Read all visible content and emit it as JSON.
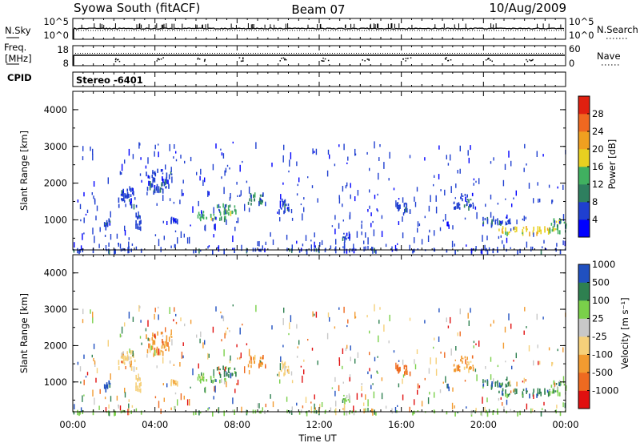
{
  "header": {
    "station": "Syowa South (fitACF)",
    "beam": "Beam 07",
    "date": "10/Aug/2009"
  },
  "noise_panel": {
    "left_label": "N.Sky",
    "right_label": "N.Search",
    "left_ticks": [
      "10^5",
      "10^0"
    ],
    "right_ticks": [
      "10^5",
      "10^0"
    ]
  },
  "freq_panel": {
    "left_label_line1": "Freq.",
    "left_label_line2": "[MHz]",
    "left_ticks": [
      "18",
      "8"
    ],
    "right_label": "Nave",
    "right_ticks": [
      "60",
      "0"
    ]
  },
  "cpid": {
    "label": "CPID",
    "value": "Stereo -6401"
  },
  "colors": {
    "power_scale": [
      "#0000ff",
      "#1f3fd0",
      "#2e7f5f",
      "#40b060",
      "#e8d020",
      "#f0a020",
      "#ef6820",
      "#e02010"
    ],
    "velocity_scale": [
      "#e01010",
      "#ee6a20",
      "#f29b30",
      "#f6d07a",
      "#c8c8c8",
      "#7ad04a",
      "#2e8050",
      "#2050c0"
    ]
  },
  "chart_data": [
    {
      "type": "heatmap",
      "name": "power",
      "ylabel": "Slant Range [km]",
      "ylim": [
        180,
        4500
      ],
      "yticks": [
        "1000",
        "2000",
        "3000",
        "4000"
      ],
      "xlim": [
        0,
        24
      ],
      "colorbar_label": "Power [dB]",
      "colorbar_ticks": [
        "4",
        "8",
        "12",
        "16",
        "20",
        "24",
        "28"
      ],
      "echo_regions": [
        {
          "t": [
            0.0,
            24.0
          ],
          "r": [
            180,
            240
          ],
          "level": 1
        },
        {
          "t": [
            1.5,
            1.8
          ],
          "r": [
            850,
            1050
          ],
          "level": 1
        },
        {
          "t": [
            2.2,
            3.1
          ],
          "r": [
            1400,
            1900
          ],
          "level": 1
        },
        {
          "t": [
            3.0,
            3.3
          ],
          "r": [
            800,
            1200
          ],
          "level": 1
        },
        {
          "t": [
            3.5,
            4.8
          ],
          "r": [
            1800,
            2400
          ],
          "level": 1
        },
        {
          "t": [
            4.7,
            5.1
          ],
          "r": [
            950,
            1100
          ],
          "level": 1
        },
        {
          "t": [
            6.0,
            7.5
          ],
          "r": [
            1050,
            1250
          ],
          "level": 3
        },
        {
          "t": [
            7.0,
            8.0
          ],
          "r": [
            1200,
            1450
          ],
          "level": 3
        },
        {
          "t": [
            8.5,
            9.3
          ],
          "r": [
            1450,
            1750
          ],
          "level": 2
        },
        {
          "t": [
            10.0,
            10.5
          ],
          "r": [
            1250,
            1600
          ],
          "level": 1
        },
        {
          "t": [
            13.0,
            13.5
          ],
          "r": [
            500,
            650
          ],
          "level": 1
        },
        {
          "t": [
            15.7,
            16.4
          ],
          "r": [
            1250,
            1500
          ],
          "level": 1
        },
        {
          "t": [
            18.5,
            19.5
          ],
          "r": [
            1350,
            1750
          ],
          "level": 1
        },
        {
          "t": [
            19.8,
            21.3
          ],
          "r": [
            900,
            1100
          ],
          "level": 1
        },
        {
          "t": [
            20.6,
            23.2
          ],
          "r": [
            650,
            850
          ],
          "level": 4
        },
        {
          "t": [
            23.2,
            24.0
          ],
          "r": [
            700,
            1050
          ],
          "level": 3
        }
      ]
    },
    {
      "type": "heatmap",
      "name": "velocity",
      "ylabel": "Slant Range [km]",
      "xlabel": "Time UT",
      "ylim": [
        180,
        4500
      ],
      "yticks": [
        "1000",
        "2000",
        "3000",
        "4000"
      ],
      "xlim": [
        0,
        24
      ],
      "xticks": [
        "00:00",
        "04:00",
        "08:00",
        "12:00",
        "16:00",
        "20:00",
        "00:00"
      ],
      "colorbar_label": "Velocity [m s⁻¹]",
      "colorbar_ticks": [
        "-1000",
        "-500",
        "-100",
        "-25",
        "25",
        "100",
        "500",
        "1000"
      ],
      "echo_regions": [
        {
          "t": [
            0.0,
            24.0
          ],
          "r": [
            180,
            240
          ],
          "level": 5
        },
        {
          "t": [
            1.5,
            1.8
          ],
          "r": [
            850,
            1050
          ],
          "level": 7
        },
        {
          "t": [
            2.2,
            3.1
          ],
          "r": [
            1400,
            1900
          ],
          "level": 3
        },
        {
          "t": [
            3.0,
            3.3
          ],
          "r": [
            800,
            1200
          ],
          "level": 3
        },
        {
          "t": [
            3.5,
            4.8
          ],
          "r": [
            1800,
            2400
          ],
          "level": 2
        },
        {
          "t": [
            4.7,
            5.1
          ],
          "r": [
            950,
            1100
          ],
          "level": 3
        },
        {
          "t": [
            6.0,
            7.5
          ],
          "r": [
            1050,
            1250
          ],
          "level": 5
        },
        {
          "t": [
            7.0,
            8.0
          ],
          "r": [
            1200,
            1450
          ],
          "level": 6
        },
        {
          "t": [
            8.5,
            9.3
          ],
          "r": [
            1450,
            1750
          ],
          "level": 2
        },
        {
          "t": [
            10.0,
            10.5
          ],
          "r": [
            1250,
            1600
          ],
          "level": 3
        },
        {
          "t": [
            13.0,
            13.5
          ],
          "r": [
            500,
            650
          ],
          "level": 5
        },
        {
          "t": [
            15.7,
            16.4
          ],
          "r": [
            1250,
            1500
          ],
          "level": 1
        },
        {
          "t": [
            18.5,
            19.5
          ],
          "r": [
            1350,
            1750
          ],
          "level": 2
        },
        {
          "t": [
            19.8,
            21.3
          ],
          "r": [
            900,
            1100
          ],
          "level": 6
        },
        {
          "t": [
            20.6,
            23.2
          ],
          "r": [
            650,
            850
          ],
          "level": 6
        },
        {
          "t": [
            23.2,
            24.0
          ],
          "r": [
            700,
            1050
          ],
          "level": 5
        }
      ]
    }
  ]
}
